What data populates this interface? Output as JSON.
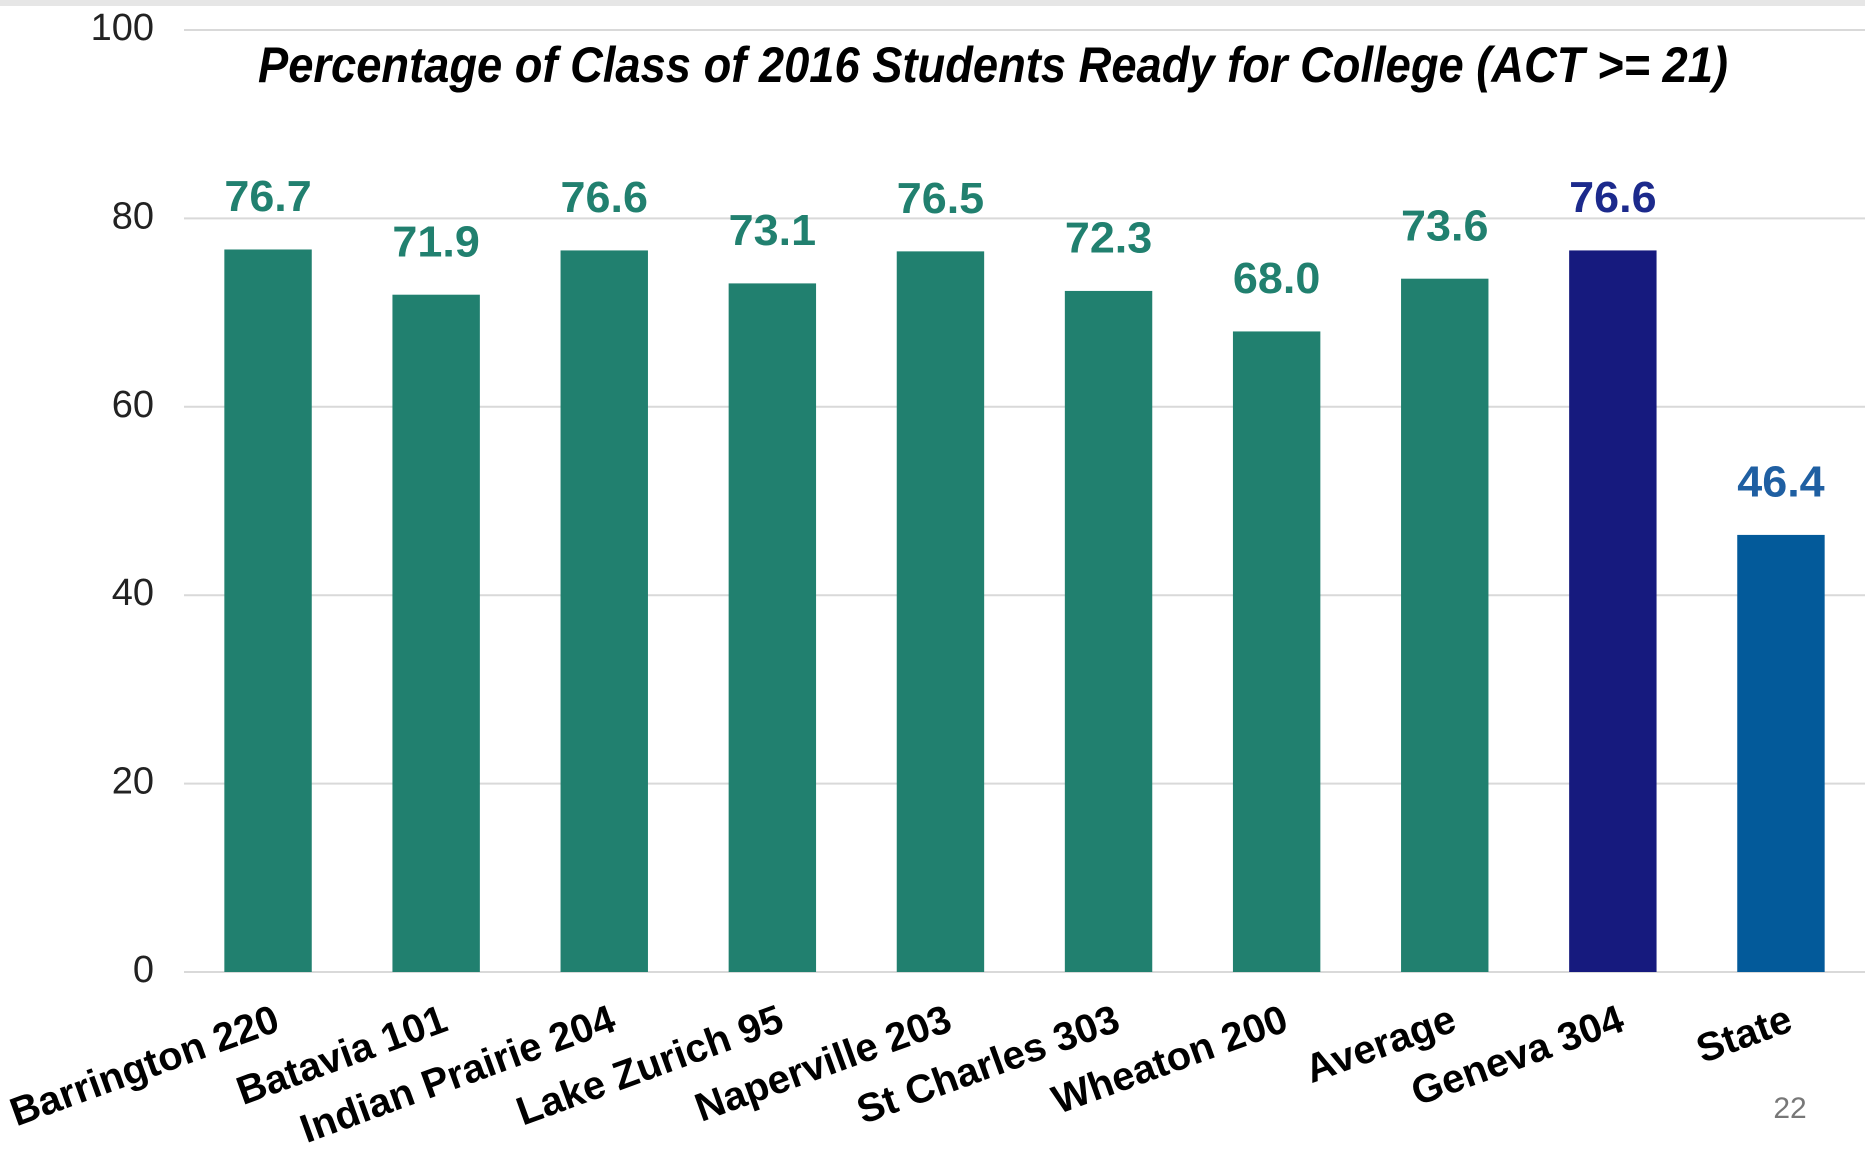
{
  "chart_data": {
    "type": "bar",
    "title": "Percentage of Class of 2016 Students Ready for College (ACT >= 21)",
    "categories": [
      "Barrington 220",
      "Batavia 101",
      "Indian Prairie 204",
      "Lake Zurich 95",
      "Naperville 203",
      "St Charles 303",
      "Wheaton 200",
      "Average",
      "Geneva 304",
      "State"
    ],
    "values": [
      76.7,
      71.9,
      76.6,
      73.1,
      76.5,
      72.3,
      68.0,
      73.6,
      76.6,
      46.4
    ],
    "value_labels": [
      "76.7",
      "71.9",
      "76.6",
      "73.1",
      "76.5",
      "72.3",
      "68.0",
      "73.6",
      "76.6",
      "46.4"
    ],
    "colors": [
      "#21806f",
      "#21806f",
      "#21806f",
      "#21806f",
      "#21806f",
      "#21806f",
      "#21806f",
      "#21806f",
      "#161a7e",
      "#035a9a"
    ],
    "label_colors": [
      "#21806f",
      "#21806f",
      "#21806f",
      "#21806f",
      "#21806f",
      "#21806f",
      "#21806f",
      "#21806f",
      "#1c2a8c",
      "#1f5fa2"
    ],
    "ylim": [
      0,
      100
    ],
    "yticks": [
      0,
      20,
      40,
      60,
      80,
      100
    ],
    "grid": true
  },
  "page_number": "22"
}
